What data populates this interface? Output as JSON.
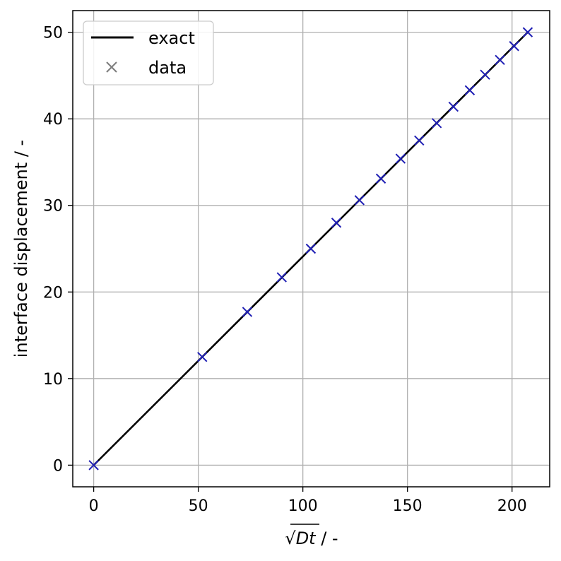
{
  "chart_data": {
    "type": "line",
    "xlabel_symbol": "Dt",
    "xlabel_suffix": " / -",
    "ylabel": "interface displacement / -",
    "xlim": [
      -10,
      218
    ],
    "ylim": [
      -2.5,
      52.5
    ],
    "xticks": [
      0,
      50,
      100,
      150,
      200
    ],
    "yticks": [
      0,
      10,
      20,
      30,
      40,
      50
    ],
    "grid": true,
    "legend_position": "top-left",
    "series": [
      {
        "name": "exact",
        "style": "line",
        "color": "#000000",
        "x": [
          0,
          207.5
        ],
        "y": [
          0,
          50
        ]
      },
      {
        "name": "data",
        "style": "x-marker",
        "legend_color": "#808080",
        "color": "#1f1fb4",
        "x": [
          0,
          51.9,
          73.4,
          89.9,
          103.8,
          116.0,
          127.1,
          137.3,
          146.7,
          155.6,
          164.0,
          172.0,
          179.8,
          187.1,
          194.2,
          201.0,
          207.5
        ],
        "y": [
          0,
          12.5,
          17.7,
          21.7,
          25.0,
          28.0,
          30.6,
          33.1,
          35.4,
          37.5,
          39.5,
          41.4,
          43.3,
          45.1,
          46.8,
          48.4,
          50.0
        ]
      }
    ]
  }
}
